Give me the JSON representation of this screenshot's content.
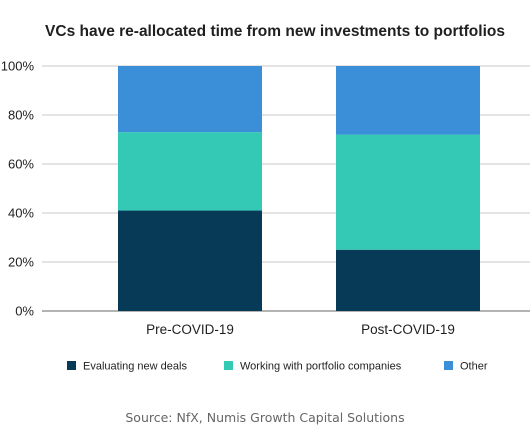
{
  "chart_data": {
    "type": "bar",
    "stacked": true,
    "title": "VCs have re-allocated time from new investments to portfolios",
    "xlabel": "",
    "ylabel": "",
    "ylim": [
      0,
      100
    ],
    "yticks": [
      "0%",
      "20%",
      "40%",
      "60%",
      "80%",
      "100%"
    ],
    "categories": [
      "Pre-COVID-19",
      "Post-COVID-19"
    ],
    "series": [
      {
        "name": "Evaluating new deals",
        "values": [
          41,
          25
        ],
        "color": "#073a57"
      },
      {
        "name": "Working with portfolio companies",
        "values": [
          32,
          47
        ],
        "color": "#33c9b5"
      },
      {
        "name": "Other",
        "values": [
          27,
          28
        ],
        "color": "#3b8ed8"
      }
    ],
    "grid": true,
    "legend_position": "bottom",
    "source": "Source: NfX, Numis Growth Capital Solutions"
  }
}
